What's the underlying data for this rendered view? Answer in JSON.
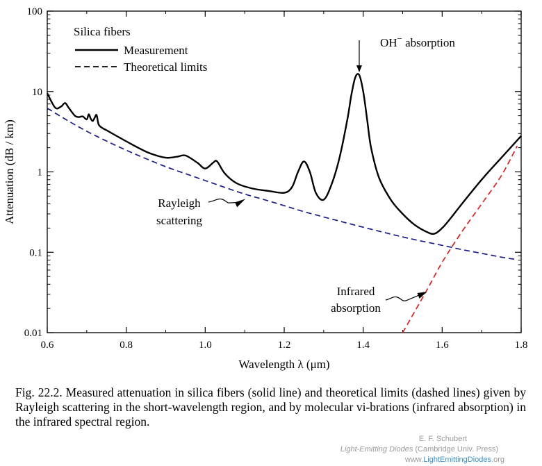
{
  "chart_data": {
    "type": "line",
    "title": "",
    "xlabel": "Wavelength λ (μm)",
    "ylabel": "Attenuation (dB / km)",
    "xlim": [
      0.6,
      1.8
    ],
    "ylim": [
      0.01,
      100
    ],
    "yscale": "log",
    "xticks": [
      "0.6",
      "0.8",
      "1.0",
      "1.2",
      "1.4",
      "1.6",
      "1.8"
    ],
    "yticks": [
      "0.01",
      "0.1",
      "1",
      "10",
      "100"
    ],
    "legend": {
      "title": "Silica fibers",
      "entries": [
        "Measurement",
        "Theoretical limits"
      ],
      "placement": "top-left"
    },
    "series": [
      {
        "name": "Measurement",
        "style": "solid",
        "color": "#000000",
        "x": [
          0.6,
          0.62,
          0.635,
          0.645,
          0.655,
          0.67,
          0.68,
          0.69,
          0.7,
          0.705,
          0.71,
          0.715,
          0.72,
          0.725,
          0.73,
          0.74,
          0.75,
          0.77,
          0.8,
          0.83,
          0.86,
          0.9,
          0.93,
          0.95,
          0.98,
          1.0,
          1.02,
          1.03,
          1.05,
          1.08,
          1.12,
          1.16,
          1.2,
          1.22,
          1.235,
          1.25,
          1.265,
          1.28,
          1.3,
          1.32,
          1.34,
          1.36,
          1.37,
          1.38,
          1.39,
          1.4,
          1.41,
          1.42,
          1.44,
          1.47,
          1.5,
          1.53,
          1.56,
          1.58,
          1.6,
          1.62,
          1.65,
          1.7,
          1.75,
          1.8
        ],
        "y": [
          9.5,
          6.3,
          6.5,
          7.2,
          6.2,
          5.0,
          4.8,
          4.9,
          4.5,
          5.2,
          4.6,
          4.3,
          4.7,
          5.1,
          3.9,
          3.5,
          3.3,
          2.9,
          2.4,
          2.0,
          1.7,
          1.5,
          1.55,
          1.6,
          1.3,
          1.1,
          1.3,
          1.35,
          0.95,
          0.72,
          0.62,
          0.58,
          0.55,
          0.65,
          1.0,
          1.35,
          1.0,
          0.55,
          0.45,
          0.7,
          1.5,
          4.5,
          9.0,
          15.0,
          16.0,
          10.0,
          4.5,
          2.0,
          0.85,
          0.45,
          0.3,
          0.22,
          0.18,
          0.17,
          0.2,
          0.26,
          0.4,
          0.8,
          1.5,
          2.8
        ]
      },
      {
        "name": "Rayleigh scattering",
        "style": "dashed",
        "color": "#1a1a8a",
        "x": [
          0.6,
          0.65,
          0.7,
          0.75,
          0.8,
          0.85,
          0.9,
          0.95,
          1.0,
          1.05,
          1.1,
          1.15,
          1.2,
          1.25,
          1.3,
          1.35,
          1.4,
          1.45,
          1.5,
          1.55,
          1.6,
          1.65,
          1.7,
          1.75,
          1.79
        ],
        "y": [
          6.2,
          4.4,
          3.2,
          2.42,
          1.86,
          1.46,
          1.16,
          0.95,
          0.78,
          0.64,
          0.53,
          0.45,
          0.38,
          0.32,
          0.275,
          0.237,
          0.205,
          0.178,
          0.155,
          0.137,
          0.122,
          0.108,
          0.097,
          0.087,
          0.081
        ]
      },
      {
        "name": "Infrared absorption",
        "style": "dashed",
        "color": "#dd1f1f",
        "x": [
          1.5,
          1.56,
          1.6,
          1.65,
          1.7,
          1.75,
          1.79
        ],
        "y": [
          0.01,
          0.033,
          0.075,
          0.18,
          0.4,
          0.9,
          2.1
        ]
      }
    ],
    "annotations": [
      {
        "text": "OH",
        "superscript": "−",
        "suffix": " absorption",
        "x": 1.39,
        "y": 16.0
      },
      {
        "text_lines": [
          "Rayleigh",
          "scattering"
        ],
        "x": 1.1,
        "y": 0.53
      },
      {
        "text_lines": [
          "Infrared",
          "absorption"
        ],
        "x": 1.56,
        "y": 0.033
      }
    ]
  },
  "caption": "Fig. 22.2. Measured attenuation in silica fibers (solid line) and theoretical limits (dashed lines) given by Rayleigh scattering in the short-wavelength region, and by molecular vi-brations (infrared absorption) in the infrared spectral region.",
  "credit": {
    "author": "E. F. Schubert",
    "book": "Light-Emitting Diodes",
    "press": " (Cambridge Univ. Press)",
    "site_prefix": "www.",
    "site_highlight": "LightEmittingDiodes",
    "site_suffix": ".org"
  }
}
